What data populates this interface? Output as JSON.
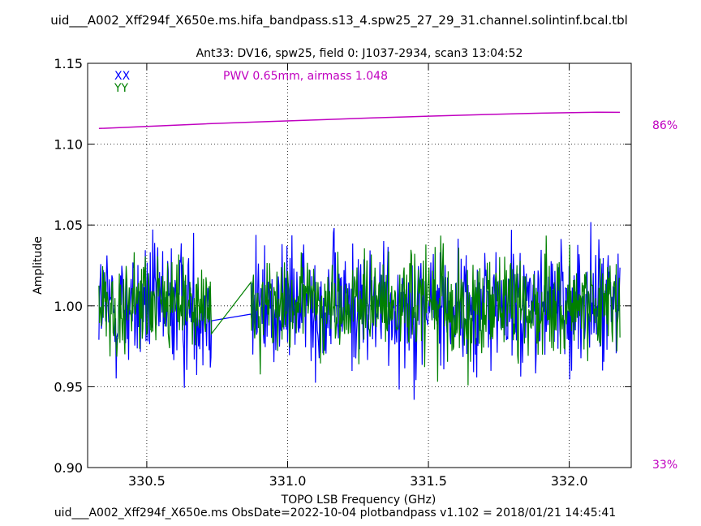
{
  "header": {
    "filename": "uid___A002_Xff294f_X650e.ms.hifa_bandpass.s13_4.spw25_27_29_31.channel.solintinf.bcal.tbl",
    "subtitle": "Ant33: DV16,  spw25,  field 0: J1037-2934,  scan3  13:04:52"
  },
  "footer": {
    "text": "uid___A002_Xff294f_X650e.ms  ObsDate=2022-10-04   plotbandpass v1.102 = 2018/01/21 14:45:41"
  },
  "chart_data": {
    "type": "line",
    "xlabel": "TOPO LSB Frequency (GHz)",
    "ylabel": "Amplitude",
    "xlim": [
      330.29,
      332.22
    ],
    "ylim": [
      0.9,
      1.15
    ],
    "xticks": [
      330.5,
      331.0,
      331.5,
      332.0
    ],
    "xtick_labels": [
      "330.5",
      "331.0",
      "331.5",
      "332.0"
    ],
    "yticks": [
      0.9,
      0.95,
      1.0,
      1.05,
      1.1,
      1.15
    ],
    "ytick_labels": [
      "0.90",
      "0.95",
      "1.00",
      "1.05",
      "1.10",
      "1.15"
    ],
    "grid": true,
    "legend": {
      "placement": "top-left",
      "entries": [
        "XX",
        "YY"
      ]
    },
    "annotation": "PWV 0.65mm, airmass 1.048",
    "right_axis_labels": {
      "top": "86%",
      "bottom": "33%"
    },
    "colors": {
      "XX": "#0000ff",
      "YY": "#008000",
      "transmission": "#c000c0"
    },
    "channel_ranges": [
      [
        330.33,
        330.73
      ],
      [
        330.87,
        332.18
      ]
    ],
    "series": [
      {
        "name": "XX",
        "noise_amplitude": 0.05,
        "spike_min": 0.91,
        "spike_max": 1.066
      },
      {
        "name": "YY",
        "noise_amplitude": 0.04,
        "spike_min": 0.923,
        "spike_max": 1.072
      }
    ],
    "transmission": {
      "x": [
        330.33,
        330.5,
        330.7,
        330.9,
        331.1,
        331.3,
        331.5,
        331.7,
        331.9,
        332.1,
        332.18
      ],
      "y": [
        1.1097,
        1.111,
        1.1125,
        1.1138,
        1.115,
        1.1162,
        1.1173,
        1.1183,
        1.1192,
        1.1198,
        1.1197
      ]
    }
  }
}
